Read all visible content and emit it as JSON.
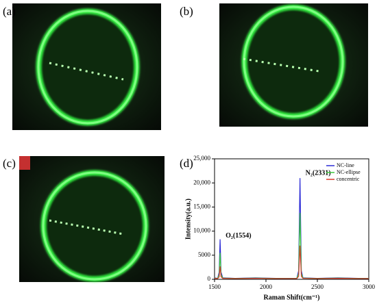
{
  "panels": [
    "(a)",
    "(b)",
    "(c)",
    "(d)"
  ],
  "chart_data": {
    "type": "line",
    "xlabel": "Raman Shift(cm⁻¹)",
    "ylabel": "Intensity(a.u.)",
    "x": [
      1500,
      1530,
      1545,
      1554,
      1563,
      1580,
      1700,
      1900,
      2100,
      2300,
      2318,
      2331,
      2344,
      2360,
      2500,
      2700,
      2900,
      3000
    ],
    "series": [
      {
        "name": "NC-line",
        "color": "#2b2bd6",
        "values": [
          300,
          200,
          1500,
          8300,
          1500,
          300,
          200,
          300,
          200,
          200,
          1800,
          21000,
          1800,
          300,
          200,
          300,
          200,
          200
        ]
      },
      {
        "name": "NC-ellipse",
        "color": "#3cc83c",
        "values": [
          250,
          180,
          1000,
          5500,
          1000,
          250,
          180,
          250,
          180,
          180,
          1200,
          13800,
          1200,
          250,
          180,
          250,
          180,
          180
        ]
      },
      {
        "name": "concentric",
        "color": "#d83a2a",
        "values": [
          200,
          150,
          500,
          2700,
          500,
          200,
          150,
          200,
          150,
          150,
          600,
          7000,
          600,
          200,
          150,
          200,
          150,
          150
        ]
      }
    ],
    "annotations": [
      {
        "text": "O₂(1554)",
        "x": 1554,
        "y": 9000
      },
      {
        "text": "N₂(2331)",
        "x": 2331,
        "y": 22000
      }
    ],
    "xlim": [
      1500,
      3000
    ],
    "xticks": [
      1500,
      2000,
      2500,
      3000
    ],
    "ylim": [
      0,
      25000
    ],
    "yticks": [
      0,
      5000,
      {
        "value": 10000,
        "label": "10,000"
      },
      {
        "value": 15000,
        "label": "15,000"
      },
      {
        "value": 20000,
        "label": "20,000"
      },
      {
        "value": 25000,
        "label": "25,000"
      }
    ],
    "legend": "upper-right"
  }
}
